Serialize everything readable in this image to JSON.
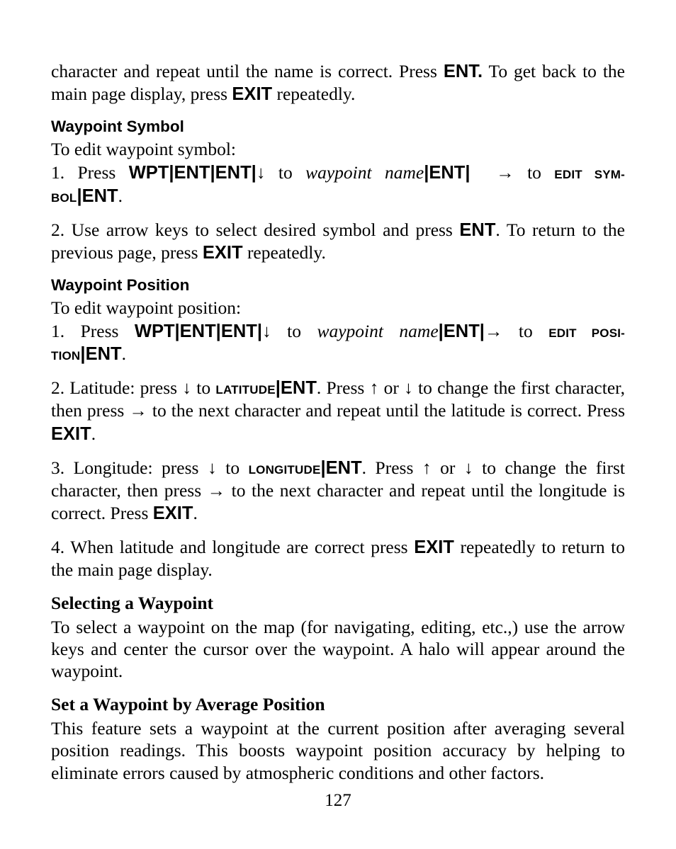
{
  "colors": {
    "text": "#000000",
    "background": "#ffffff"
  },
  "fonts": {
    "body_family": "Times New Roman / Century Schoolbook (serif)",
    "body_size_pt": 19,
    "sans_family": "Arial / Helvetica",
    "sans_heading_size_pt": 17,
    "serif_heading_size_pt": 19
  },
  "glyphs": {
    "down": "↓",
    "up": "↑",
    "right": "→",
    "pipe": "|"
  },
  "page_number": "127",
  "para_intro_a": "character and repeat until the name is correct. Press ",
  "para_intro_b": "ENT.",
  "para_intro_c": " To get back to the main page display, press ",
  "para_intro_d": "EXIT",
  "para_intro_e": " repeatedly.",
  "h_symbol": "Waypoint Symbol",
  "sym_intro": "To edit waypoint symbol:",
  "sym1_a": "1. Press ",
  "sym1_wpt": "WPT",
  "sym1_ent": "ENT",
  "sym1_to1": " to ",
  "sym1_wpname": "waypoint name",
  "sym1_to2": " to ",
  "sym1_edit": "Edit Symbol",
  "sym1_end": ".",
  "sym2_a": "2. Use arrow keys to select desired symbol and press ",
  "sym2_b": "ENT",
  "sym2_c": ". To return to the previous page, press ",
  "sym2_d": "EXIT",
  "sym2_e": " repeatedly.",
  "h_position": "Waypoint Position",
  "pos_intro": "To edit waypoint position:",
  "pos1_a": "1. Press ",
  "pos1_edit": "Edit Position",
  "pos2_a": "2. Latitude: press ",
  "pos2_lat": "Latitude",
  "pos2_b": ". Press ",
  "pos2_c": " or ",
  "pos2_d": " to change the first character, then press ",
  "pos2_e": " to the next character and repeat until the latitude is correct. Press ",
  "pos2_exit": "EXIT",
  "pos2_end": ".",
  "pos3_a": "3. Longitude: press ",
  "pos3_lon": "Longitude",
  "pos3_e": " to the next character and repeat until the longitude is correct. Press ",
  "pos4_a": "4. When latitude and longitude are correct press ",
  "pos4_b": "EXIT",
  "pos4_c": " repeatedly to return to the main page display.",
  "h_select": "Selecting a Waypoint",
  "select_body": "To select a waypoint on the map (for navigating, editing, etc.,) use the arrow keys and center the cursor over the waypoint. A halo will appear around the waypoint.",
  "h_avg": "Set a Waypoint by Average Position",
  "avg_body": "This feature sets a waypoint at the current position after averaging several position readings. This boosts waypoint position accuracy by helping to eliminate errors caused by atmospheric conditions and other factors."
}
